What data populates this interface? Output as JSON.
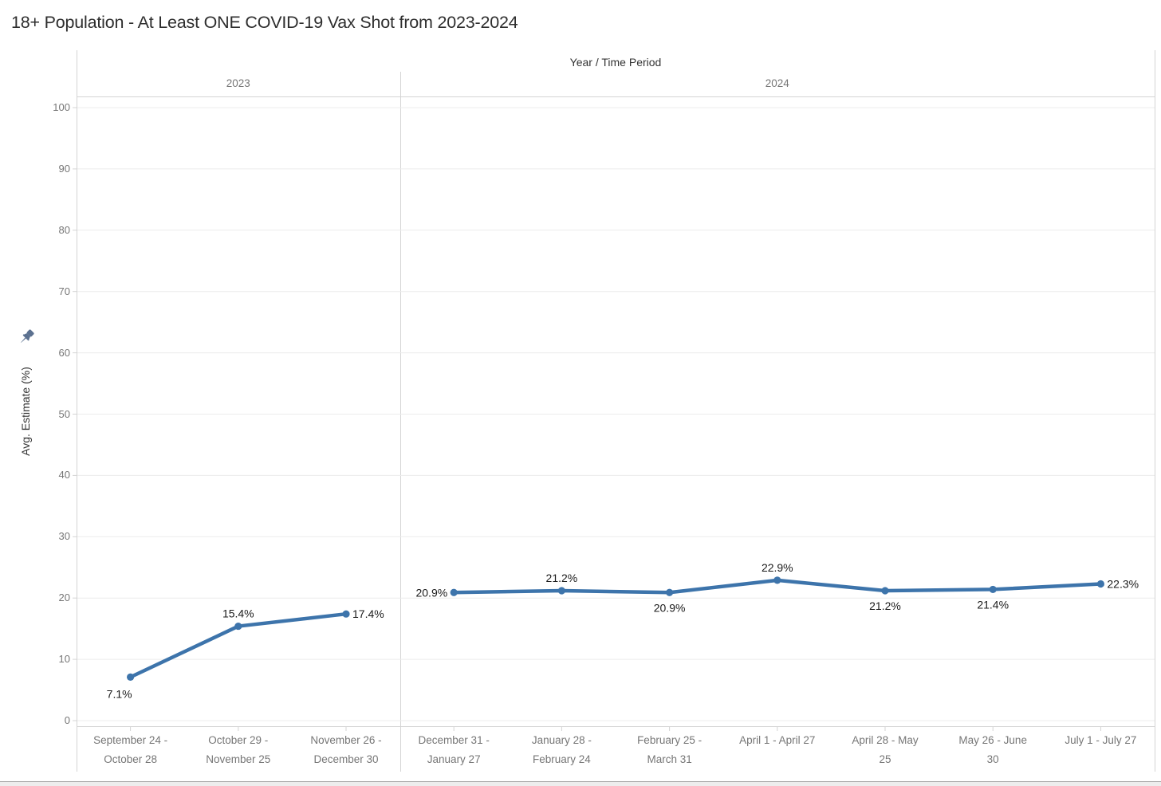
{
  "title": "18+ Population - At Least ONE COVID-19 Vax Shot from 2023-2024",
  "field_label": "Year / Time Period",
  "y_axis_title": "Avg. Estimate (%)",
  "icons": {
    "pin": "pushpin-icon"
  },
  "colors": {
    "line": "#3d74ab",
    "marker": "#3d74ab",
    "data_label": "#1a1a1a",
    "tick_label": "#767676",
    "header_text": "#333333",
    "year_text": "#767676",
    "title_text": "#2e2e2e",
    "gridline": "#ececec",
    "border": "#d4d4d4",
    "pin": "#5c7190",
    "scrollbar_track": "#ededed",
    "scrollbar_border": "#a6a6a6"
  },
  "chart_data": {
    "type": "line",
    "title": "18+ Population - At Least ONE COVID-19 Vax Shot from 2023-2024",
    "xlabel": "Year / Time Period",
    "ylabel": "Avg. Estimate (%)",
    "ylim": [
      0,
      100
    ],
    "yticks": [
      0,
      10,
      20,
      30,
      40,
      50,
      60,
      70,
      80,
      90,
      100
    ],
    "grid": true,
    "legend": "none",
    "panels": [
      {
        "year": "2023",
        "categories": [
          [
            "September 24 -",
            "October 28"
          ],
          [
            "October 29 -",
            "November 25"
          ],
          [
            "November 26 -",
            "December 30"
          ]
        ],
        "values": [
          7.1,
          15.4,
          17.4
        ],
        "point_labels": [
          "7.1%",
          "15.4%",
          "17.4%"
        ],
        "label_positions": [
          "below-left",
          "above",
          "right"
        ]
      },
      {
        "year": "2024",
        "categories": [
          [
            "December 31 -",
            "January 27"
          ],
          [
            "January 28 -",
            "February 24"
          ],
          [
            "February 25 -",
            "March 31"
          ],
          [
            "April 1 - April 27"
          ],
          [
            "April 28 - May",
            "25"
          ],
          [
            "May 26 - June",
            "30"
          ],
          [
            "July 1 - July 27"
          ]
        ],
        "values": [
          20.9,
          21.2,
          20.9,
          22.9,
          21.2,
          21.4,
          22.3
        ],
        "point_labels": [
          "20.9%",
          "21.2%",
          "20.9%",
          "22.9%",
          "21.2%",
          "21.4%",
          "22.3%"
        ],
        "label_positions": [
          "left",
          "above",
          "below",
          "above",
          "below",
          "below",
          "right"
        ]
      }
    ]
  }
}
